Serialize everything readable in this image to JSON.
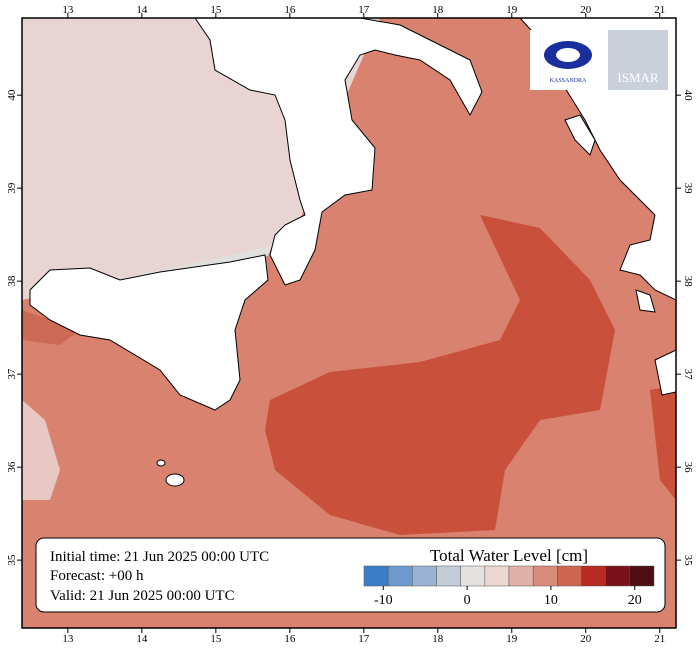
{
  "map": {
    "xlim": [
      12.38,
      21.22
    ],
    "ylim": [
      34.27,
      40.83
    ],
    "lon_ticks": [
      13,
      14,
      15,
      16,
      17,
      18,
      19,
      20,
      21
    ],
    "lat_ticks": [
      35,
      36,
      37,
      38,
      39,
      40
    ]
  },
  "logos": {
    "left": "KASSANDRA",
    "right": "ISMAR"
  },
  "info": {
    "initial": "Initial time: 21 Jun 2025 00:00 UTC",
    "forecast": "Forecast: +00 h",
    "valid": "Valid: 21 Jun 2025 00:00 UTC"
  },
  "colorbar": {
    "title": "Total Water Level [cm]",
    "lim": [
      -12.3,
      22.3
    ],
    "ticks": [
      -10,
      0,
      10,
      20
    ],
    "colors": [
      "#3b7dc9",
      "#6e9ad0",
      "#9ab3d2",
      "#c4ccd8",
      "#e4e1e1",
      "#ecd6d0",
      "#e2b1a6",
      "#d88c7a",
      "#cd6550",
      "#b82a24",
      "#7a121a",
      "#4d0d12"
    ]
  }
}
